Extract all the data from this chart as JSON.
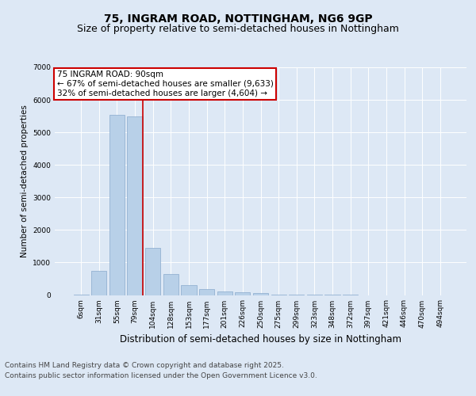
{
  "title": "75, INGRAM ROAD, NOTTINGHAM, NG6 9GP",
  "subtitle": "Size of property relative to semi-detached houses in Nottingham",
  "xlabel": "Distribution of semi-detached houses by size in Nottingham",
  "ylabel": "Number of semi-detached properties",
  "categories": [
    "6sqm",
    "31sqm",
    "55sqm",
    "79sqm",
    "104sqm",
    "128sqm",
    "153sqm",
    "177sqm",
    "201sqm",
    "226sqm",
    "250sqm",
    "275sqm",
    "299sqm",
    "323sqm",
    "348sqm",
    "372sqm",
    "397sqm",
    "421sqm",
    "446sqm",
    "470sqm",
    "494sqm"
  ],
  "values": [
    8,
    750,
    5550,
    5500,
    1450,
    650,
    300,
    190,
    105,
    75,
    50,
    15,
    5,
    2,
    1,
    1,
    0,
    0,
    0,
    0,
    0
  ],
  "bar_color": "#b8d0e8",
  "bar_edge_color": "#88aacc",
  "vline_index": 3,
  "vline_color": "#cc0000",
  "background_color": "#dde8f5",
  "plot_bg_color": "#dde8f5",
  "annotation_text": "75 INGRAM ROAD: 90sqm\n← 67% of semi-detached houses are smaller (9,633)\n32% of semi-detached houses are larger (4,604) →",
  "annotation_box_facecolor": "#ffffff",
  "annotation_border_color": "#cc0000",
  "ylim": [
    0,
    7000
  ],
  "yticks": [
    0,
    1000,
    2000,
    3000,
    4000,
    5000,
    6000,
    7000
  ],
  "footer_line1": "Contains HM Land Registry data © Crown copyright and database right 2025.",
  "footer_line2": "Contains public sector information licensed under the Open Government Licence v3.0.",
  "title_fontsize": 10,
  "subtitle_fontsize": 9,
  "xlabel_fontsize": 8.5,
  "ylabel_fontsize": 7.5,
  "tick_fontsize": 6.5,
  "annotation_fontsize": 7.5,
  "footer_fontsize": 6.5
}
